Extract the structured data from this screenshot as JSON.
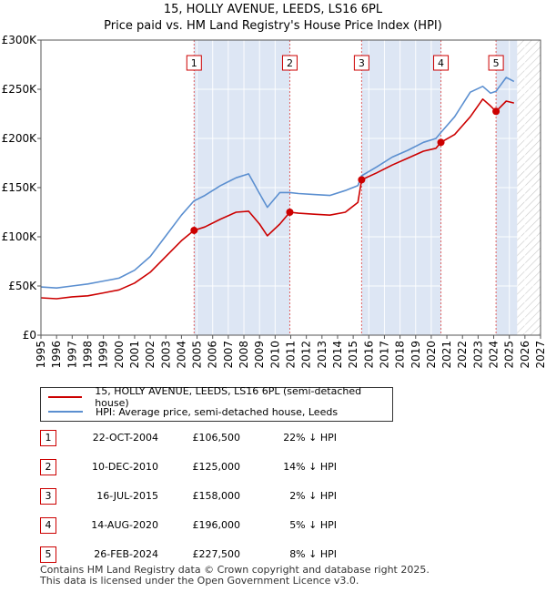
{
  "title_line1": "15, HOLLY AVENUE, LEEDS, LS16 6PL",
  "title_line2": "Price paid vs. HM Land Registry's House Price Index (HPI)",
  "colors": {
    "price": "#cc0000",
    "hpi": "#5b8fd0",
    "shade": "#dde6f4",
    "vline": "#e06060"
  },
  "chart_data": {
    "type": "line",
    "title": "Price paid vs. HM Land Registry's House Price Index (HPI)",
    "xlabel": "",
    "ylabel": "",
    "xlim": [
      1995,
      2027
    ],
    "ylim": [
      0,
      300000
    ],
    "y_ticks": [
      {
        "value": 0,
        "label": "£0"
      },
      {
        "value": 50000,
        "label": "£50K"
      },
      {
        "value": 100000,
        "label": "£100K"
      },
      {
        "value": 150000,
        "label": "£150K"
      },
      {
        "value": 200000,
        "label": "£200K"
      },
      {
        "value": 250000,
        "label": "£250K"
      },
      {
        "value": 300000,
        "label": "£300K"
      }
    ],
    "x_ticks": [
      "1995",
      "1996",
      "1997",
      "1998",
      "1999",
      "2000",
      "2001",
      "2002",
      "2003",
      "2004",
      "2005",
      "2006",
      "2007",
      "2008",
      "2009",
      "2010",
      "2011",
      "2012",
      "2013",
      "2014",
      "2015",
      "2016",
      "2017",
      "2018",
      "2019",
      "2020",
      "2021",
      "2022",
      "2023",
      "2024",
      "2025",
      "2026",
      "2027"
    ],
    "forecast_from": 2025.5,
    "series": [
      {
        "name": "15, HOLLY AVENUE, LEEDS, LS16 6PL (semi-detached house)",
        "color": "#cc0000",
        "x": [
          1995.0,
          1996.0,
          1997.0,
          1998.0,
          1999.0,
          2000.0,
          2001.0,
          2002.0,
          2003.0,
          2004.0,
          2004.8,
          2005.5,
          2006.5,
          2007.5,
          2008.3,
          2009.0,
          2009.5,
          2010.3,
          2010.94,
          2011.5,
          2012.5,
          2013.5,
          2014.5,
          2015.3,
          2015.54,
          2016.5,
          2017.5,
          2018.5,
          2019.5,
          2020.3,
          2020.62,
          2021.5,
          2022.5,
          2023.3,
          2023.8,
          2024.15,
          2024.8,
          2025.3
        ],
        "y": [
          38000,
          37000,
          39000,
          40000,
          43000,
          46000,
          53000,
          64000,
          80000,
          96000,
          106500,
          110000,
          118000,
          125000,
          126000,
          113000,
          101000,
          113000,
          125000,
          124000,
          123000,
          122000,
          125000,
          135000,
          158000,
          165000,
          173000,
          180000,
          187000,
          190000,
          196000,
          204000,
          222000,
          240000,
          233000,
          227500,
          238000,
          236000
        ]
      },
      {
        "name": "HPI: Average price, semi-detached house, Leeds",
        "color": "#5b8fd0",
        "x": [
          1995.0,
          1996.0,
          1997.0,
          1998.0,
          1999.0,
          2000.0,
          2001.0,
          2002.0,
          2003.0,
          2004.0,
          2004.8,
          2005.5,
          2006.5,
          2007.5,
          2008.3,
          2009.0,
          2009.5,
          2010.3,
          2010.94,
          2011.5,
          2012.5,
          2013.5,
          2014.5,
          2015.3,
          2015.54,
          2016.5,
          2017.5,
          2018.5,
          2019.5,
          2020.3,
          2020.62,
          2021.5,
          2022.5,
          2023.3,
          2023.8,
          2024.15,
          2024.8,
          2025.3
        ],
        "y": [
          49000,
          48000,
          50000,
          52000,
          55000,
          58000,
          66000,
          80000,
          101000,
          122000,
          136500,
          142000,
          152000,
          160000,
          164000,
          144000,
          130000,
          145000,
          145000,
          144000,
          143000,
          142000,
          147000,
          152000,
          162000,
          171000,
          181000,
          188000,
          196000,
          200000,
          206000,
          222000,
          247000,
          253000,
          246000,
          248000,
          262000,
          258000
        ]
      }
    ],
    "markers": [
      {
        "label": "1",
        "x": 2004.81,
        "y": 106500
      },
      {
        "label": "2",
        "x": 2010.94,
        "y": 125000
      },
      {
        "label": "3",
        "x": 2015.54,
        "y": 158000
      },
      {
        "label": "4",
        "x": 2020.62,
        "y": 196000
      },
      {
        "label": "5",
        "x": 2024.15,
        "y": 227500
      }
    ],
    "shaded_ranges": [
      [
        2004.81,
        2010.94
      ],
      [
        2015.54,
        2020.62
      ],
      [
        2024.15,
        2025.5
      ]
    ]
  },
  "legend": {
    "price_label": "15, HOLLY AVENUE, LEEDS, LS16 6PL (semi-detached house)",
    "hpi_label": "HPI: Average price, semi-detached house, Leeds"
  },
  "transactions": [
    {
      "num": "1",
      "date": "22-OCT-2004",
      "price": "£106,500",
      "hpi": "22% ↓ HPI"
    },
    {
      "num": "2",
      "date": "10-DEC-2010",
      "price": "£125,000",
      "hpi": "14% ↓ HPI"
    },
    {
      "num": "3",
      "date": "16-JUL-2015",
      "price": "£158,000",
      "hpi": "2% ↓ HPI"
    },
    {
      "num": "4",
      "date": "14-AUG-2020",
      "price": "£196,000",
      "hpi": "5% ↓ HPI"
    },
    {
      "num": "5",
      "date": "26-FEB-2024",
      "price": "£227,500",
      "hpi": "8% ↓ HPI"
    }
  ],
  "footer": {
    "line1": "Contains HM Land Registry data © Crown copyright and database right 2025.",
    "line2": "This data is licensed under the Open Government Licence v3.0."
  }
}
